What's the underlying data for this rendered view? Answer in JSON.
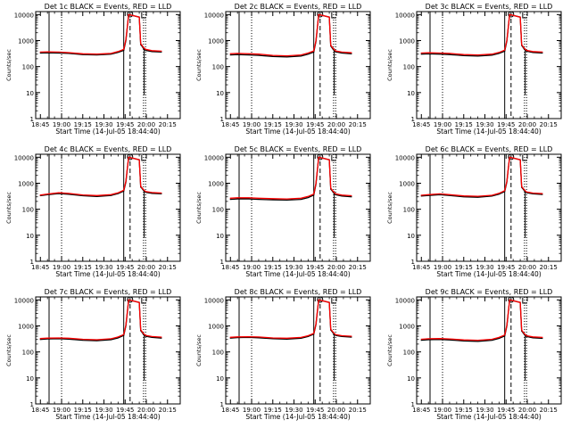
{
  "figure": {
    "background": "#ffffff",
    "axis_color": "#000000",
    "events_color": "#000000",
    "lld_color": "#ff0000"
  },
  "chart_data": [
    {
      "type": "line",
      "title": "Det 1c BLACK = Events, RED = LLD",
      "xlabel": "Start Time (14-Jul-05 18:44:40)",
      "ylabel": "Counts/sec",
      "x_ticks": [
        "18:45",
        "19:00",
        "19:15",
        "19:30",
        "19:45",
        "20:00",
        "20:15"
      ],
      "y_ticks": [
        "1",
        "10",
        "100",
        "1000",
        "10000"
      ],
      "x": [
        "18:44:40",
        "18:50:00",
        "18:58:00",
        "19:05:00",
        "19:15:00",
        "19:25:00",
        "19:35:00",
        "19:40:00",
        "19:44:00",
        "19:45:30",
        "19:46:30",
        "19:47:30",
        "19:55:00",
        "19:56:00",
        "19:57:00",
        "19:58:00",
        "19:59:30",
        "20:04:00",
        "20:11:00"
      ],
      "ylim": [
        1,
        13000
      ],
      "y_scale": "log",
      "series": [
        {
          "name": "Events",
          "values": [
            330,
            340,
            330,
            320,
            290,
            280,
            300,
            350,
            420,
            1000,
            3000,
            10000,
            8000,
            700,
            600,
            500,
            420,
            380,
            360
          ]
        },
        {
          "name": "LLD",
          "values": [
            360,
            370,
            360,
            345,
            310,
            300,
            320,
            380,
            460,
            1100,
            3200,
            10000,
            8000,
            760,
            650,
            540,
            460,
            410,
            390
          ]
        }
      ]
    },
    {
      "type": "line",
      "title": "Det 2c BLACK = Events, RED = LLD",
      "xlabel": "Start Time (14-Jul-05 18:44:40)",
      "ylabel": "Counts/sec",
      "x_ticks": [
        "18:45",
        "19:00",
        "19:15",
        "19:30",
        "19:45",
        "20:00",
        "20:15"
      ],
      "y_ticks": [
        "1",
        "10",
        "100",
        "1000",
        "10000"
      ],
      "x": [
        "18:44:40",
        "18:50:00",
        "18:58:00",
        "19:05:00",
        "19:15:00",
        "19:25:00",
        "19:35:00",
        "19:40:00",
        "19:44:00",
        "19:45:30",
        "19:46:30",
        "19:47:30",
        "19:55:00",
        "19:56:00",
        "19:57:00",
        "19:58:00",
        "19:59:30",
        "20:04:00",
        "20:11:00"
      ],
      "ylim": [
        1,
        13000
      ],
      "y_scale": "log",
      "series": [
        {
          "name": "Events",
          "values": [
            280,
            290,
            280,
            270,
            245,
            235,
            255,
            300,
            360,
            900,
            2800,
            10000,
            8000,
            620,
            520,
            440,
            370,
            330,
            310
          ]
        },
        {
          "name": "LLD",
          "values": [
            310,
            320,
            310,
            300,
            270,
            260,
            280,
            330,
            400,
            980,
            3000,
            10000,
            8000,
            670,
            560,
            480,
            400,
            360,
            340
          ]
        }
      ]
    },
    {
      "type": "line",
      "title": "Det 3c BLACK = Events, RED = LLD",
      "xlabel": "Start Time (14-Jul-05 18:44:40)",
      "ylabel": "Counts/sec",
      "x_ticks": [
        "18:45",
        "19:00",
        "19:15",
        "19:30",
        "19:45",
        "20:00",
        "20:15"
      ],
      "y_ticks": [
        "1",
        "10",
        "100",
        "1000",
        "10000"
      ],
      "x": [
        "18:44:40",
        "18:50:00",
        "18:58:00",
        "19:05:00",
        "19:15:00",
        "19:25:00",
        "19:35:00",
        "19:40:00",
        "19:44:00",
        "19:45:30",
        "19:46:30",
        "19:47:30",
        "19:55:00",
        "19:56:00",
        "19:57:00",
        "19:58:00",
        "19:59:30",
        "20:04:00",
        "20:11:00"
      ],
      "ylim": [
        1,
        13000
      ],
      "y_scale": "log",
      "series": [
        {
          "name": "Events",
          "values": [
            300,
            310,
            300,
            290,
            265,
            255,
            275,
            320,
            390,
            950,
            2900,
            10000,
            8000,
            650,
            550,
            460,
            390,
            350,
            330
          ]
        },
        {
          "name": "LLD",
          "values": [
            330,
            340,
            330,
            320,
            290,
            280,
            300,
            350,
            430,
            1030,
            3100,
            10000,
            8000,
            700,
            590,
            500,
            420,
            380,
            360
          ]
        }
      ]
    },
    {
      "type": "line",
      "title": "Det 4c BLACK = Events, RED = LLD",
      "xlabel": "Start Time (14-Jul-05 18:44:40)",
      "ylabel": "Counts/sec",
      "x_ticks": [
        "18:45",
        "19:00",
        "19:15",
        "19:30",
        "19:45",
        "20:00",
        "20:15"
      ],
      "y_ticks": [
        "1",
        "10",
        "100",
        "1000",
        "10000"
      ],
      "x": [
        "18:44:40",
        "18:50:00",
        "18:58:00",
        "19:05:00",
        "19:15:00",
        "19:25:00",
        "19:35:00",
        "19:40:00",
        "19:44:00",
        "19:45:30",
        "19:46:30",
        "19:47:30",
        "19:55:00",
        "19:56:00",
        "19:57:00",
        "19:58:00",
        "19:59:30",
        "20:04:00",
        "20:11:00"
      ],
      "ylim": [
        1,
        13000
      ],
      "y_scale": "log",
      "series": [
        {
          "name": "Events",
          "values": [
            330,
            360,
            400,
            380,
            330,
            310,
            340,
            400,
            500,
            1100,
            3300,
            10000,
            8000,
            720,
            620,
            530,
            450,
            410,
            390
          ]
        },
        {
          "name": "LLD",
          "values": [
            350,
            385,
            430,
            405,
            355,
            335,
            365,
            430,
            540,
            1200,
            3500,
            10000,
            8000,
            770,
            660,
            570,
            480,
            440,
            420
          ]
        }
      ]
    },
    {
      "type": "line",
      "title": "Det 5c BLACK = Events, RED = LLD",
      "xlabel": "Start Time (14-Jul-05 18:44:40)",
      "ylabel": "Counts/sec",
      "x_ticks": [
        "18:45",
        "19:00",
        "19:15",
        "19:30",
        "19:45",
        "20:00",
        "20:15"
      ],
      "y_ticks": [
        "1",
        "10",
        "100",
        "1000",
        "10000"
      ],
      "x": [
        "18:44:40",
        "18:50:00",
        "18:58:00",
        "19:05:00",
        "19:15:00",
        "19:25:00",
        "19:35:00",
        "19:40:00",
        "19:44:00",
        "19:45:30",
        "19:46:30",
        "19:47:30",
        "19:55:00",
        "19:56:00",
        "19:57:00",
        "19:58:00",
        "19:59:30",
        "20:04:00",
        "20:11:00"
      ],
      "ylim": [
        1,
        13000
      ],
      "y_scale": "log",
      "series": [
        {
          "name": "Events",
          "values": [
            240,
            250,
            250,
            240,
            230,
            225,
            240,
            280,
            350,
            900,
            2800,
            10000,
            8000,
            600,
            510,
            430,
            360,
            320,
            300
          ]
        },
        {
          "name": "LLD",
          "values": [
            265,
            275,
            275,
            265,
            255,
            250,
            265,
            310,
            385,
            980,
            3000,
            10000,
            8000,
            650,
            550,
            470,
            390,
            350,
            330
          ]
        }
      ]
    },
    {
      "type": "line",
      "title": "Det 6c BLACK = Events, RED = LLD",
      "xlabel": "Start Time (14-Jul-05 18:44:40)",
      "ylabel": "Counts/sec",
      "x_ticks": [
        "18:45",
        "19:00",
        "19:15",
        "19:30",
        "19:45",
        "20:00",
        "20:15"
      ],
      "y_ticks": [
        "1",
        "10",
        "100",
        "1000",
        "10000"
      ],
      "x": [
        "18:44:40",
        "18:50:00",
        "18:58:00",
        "19:05:00",
        "19:15:00",
        "19:25:00",
        "19:35:00",
        "19:40:00",
        "19:44:00",
        "19:45:30",
        "19:46:30",
        "19:47:30",
        "19:55:00",
        "19:56:00",
        "19:57:00",
        "19:58:00",
        "19:59:30",
        "20:04:00",
        "20:11:00"
      ],
      "ylim": [
        1,
        13000
      ],
      "y_scale": "log",
      "series": [
        {
          "name": "Events",
          "values": [
            320,
            340,
            360,
            340,
            300,
            290,
            320,
            380,
            480,
            1100,
            3300,
            10000,
            8000,
            700,
            600,
            510,
            430,
            390,
            370
          ]
        },
        {
          "name": "LLD",
          "values": [
            345,
            365,
            390,
            365,
            325,
            315,
            345,
            410,
            520,
            1180,
            3500,
            10000,
            8000,
            750,
            640,
            550,
            460,
            420,
            400
          ]
        }
      ]
    },
    {
      "type": "line",
      "title": "Det 7c BLACK = Events, RED = LLD",
      "xlabel": "Start Time (14-Jul-05 18:44:40)",
      "ylabel": "Counts/sec",
      "x_ticks": [
        "18:45",
        "19:00",
        "19:15",
        "19:30",
        "19:45",
        "20:00",
        "20:15"
      ],
      "y_ticks": [
        "1",
        "10",
        "100",
        "1000",
        "10000"
      ],
      "x": [
        "18:44:40",
        "18:50:00",
        "18:58:00",
        "19:05:00",
        "19:15:00",
        "19:25:00",
        "19:35:00",
        "19:40:00",
        "19:44:00",
        "19:45:30",
        "19:46:30",
        "19:47:30",
        "19:55:00",
        "19:56:00",
        "19:57:00",
        "19:58:00",
        "19:59:30",
        "20:04:00",
        "20:11:00"
      ],
      "ylim": [
        1,
        13000
      ],
      "y_scale": "log",
      "series": [
        {
          "name": "Events",
          "values": [
            300,
            315,
            320,
            310,
            280,
            270,
            295,
            345,
            430,
            1000,
            3000,
            10000,
            8000,
            660,
            560,
            470,
            400,
            360,
            340
          ]
        },
        {
          "name": "LLD",
          "values": [
            325,
            340,
            345,
            335,
            305,
            295,
            320,
            375,
            465,
            1080,
            3200,
            10000,
            8000,
            710,
            600,
            510,
            430,
            390,
            370
          ]
        }
      ]
    },
    {
      "type": "line",
      "title": "Det 8c BLACK = Events, RED = LLD",
      "xlabel": "Start Time (14-Jul-05 18:44:40)",
      "ylabel": "Counts/sec",
      "x_ticks": [
        "18:45",
        "19:00",
        "19:15",
        "19:30",
        "19:45",
        "20:00",
        "20:15"
      ],
      "y_ticks": [
        "1",
        "10",
        "100",
        "1000",
        "10000"
      ],
      "x": [
        "18:44:40",
        "18:50:00",
        "18:58:00",
        "19:05:00",
        "19:15:00",
        "19:25:00",
        "19:35:00",
        "19:40:00",
        "19:44:00",
        "19:45:30",
        "19:46:30",
        "19:47:30",
        "19:55:00",
        "19:56:00",
        "19:57:00",
        "19:58:00",
        "19:59:30",
        "20:04:00",
        "20:11:00"
      ],
      "ylim": [
        1,
        13000
      ],
      "y_scale": "log",
      "series": [
        {
          "name": "Events",
          "values": [
            340,
            355,
            360,
            350,
            320,
            310,
            335,
            390,
            480,
            1100,
            3200,
            10000,
            8000,
            700,
            600,
            510,
            430,
            390,
            370
          ]
        },
        {
          "name": "LLD",
          "values": [
            365,
            380,
            385,
            375,
            345,
            335,
            360,
            420,
            515,
            1180,
            3400,
            10000,
            8000,
            750,
            640,
            550,
            460,
            420,
            400
          ]
        }
      ]
    },
    {
      "type": "line",
      "title": "Det 9c BLACK = Events, RED = LLD",
      "xlabel": "Start Time (14-Jul-05 18:44:40)",
      "ylabel": "Counts/sec",
      "x_ticks": [
        "18:45",
        "19:00",
        "19:15",
        "19:30",
        "19:45",
        "20:00",
        "20:15"
      ],
      "y_ticks": [
        "1",
        "10",
        "100",
        "1000",
        "10000"
      ],
      "x": [
        "18:44:40",
        "18:50:00",
        "18:58:00",
        "19:05:00",
        "19:15:00",
        "19:25:00",
        "19:35:00",
        "19:40:00",
        "19:44:00",
        "19:45:30",
        "19:46:30",
        "19:47:30",
        "19:55:00",
        "19:56:00",
        "19:57:00",
        "19:58:00",
        "19:59:30",
        "20:04:00",
        "20:11:00"
      ],
      "ylim": [
        1,
        13000
      ],
      "y_scale": "log",
      "series": [
        {
          "name": "Events",
          "values": [
            280,
            295,
            300,
            290,
            265,
            255,
            280,
            330,
            410,
            980,
            2900,
            10000,
            8000,
            640,
            540,
            460,
            390,
            350,
            330
          ]
        },
        {
          "name": "LLD",
          "values": [
            305,
            320,
            325,
            315,
            290,
            280,
            305,
            360,
            445,
            1060,
            3100,
            10000,
            8000,
            690,
            580,
            500,
            420,
            380,
            360
          ]
        }
      ]
    }
  ]
}
